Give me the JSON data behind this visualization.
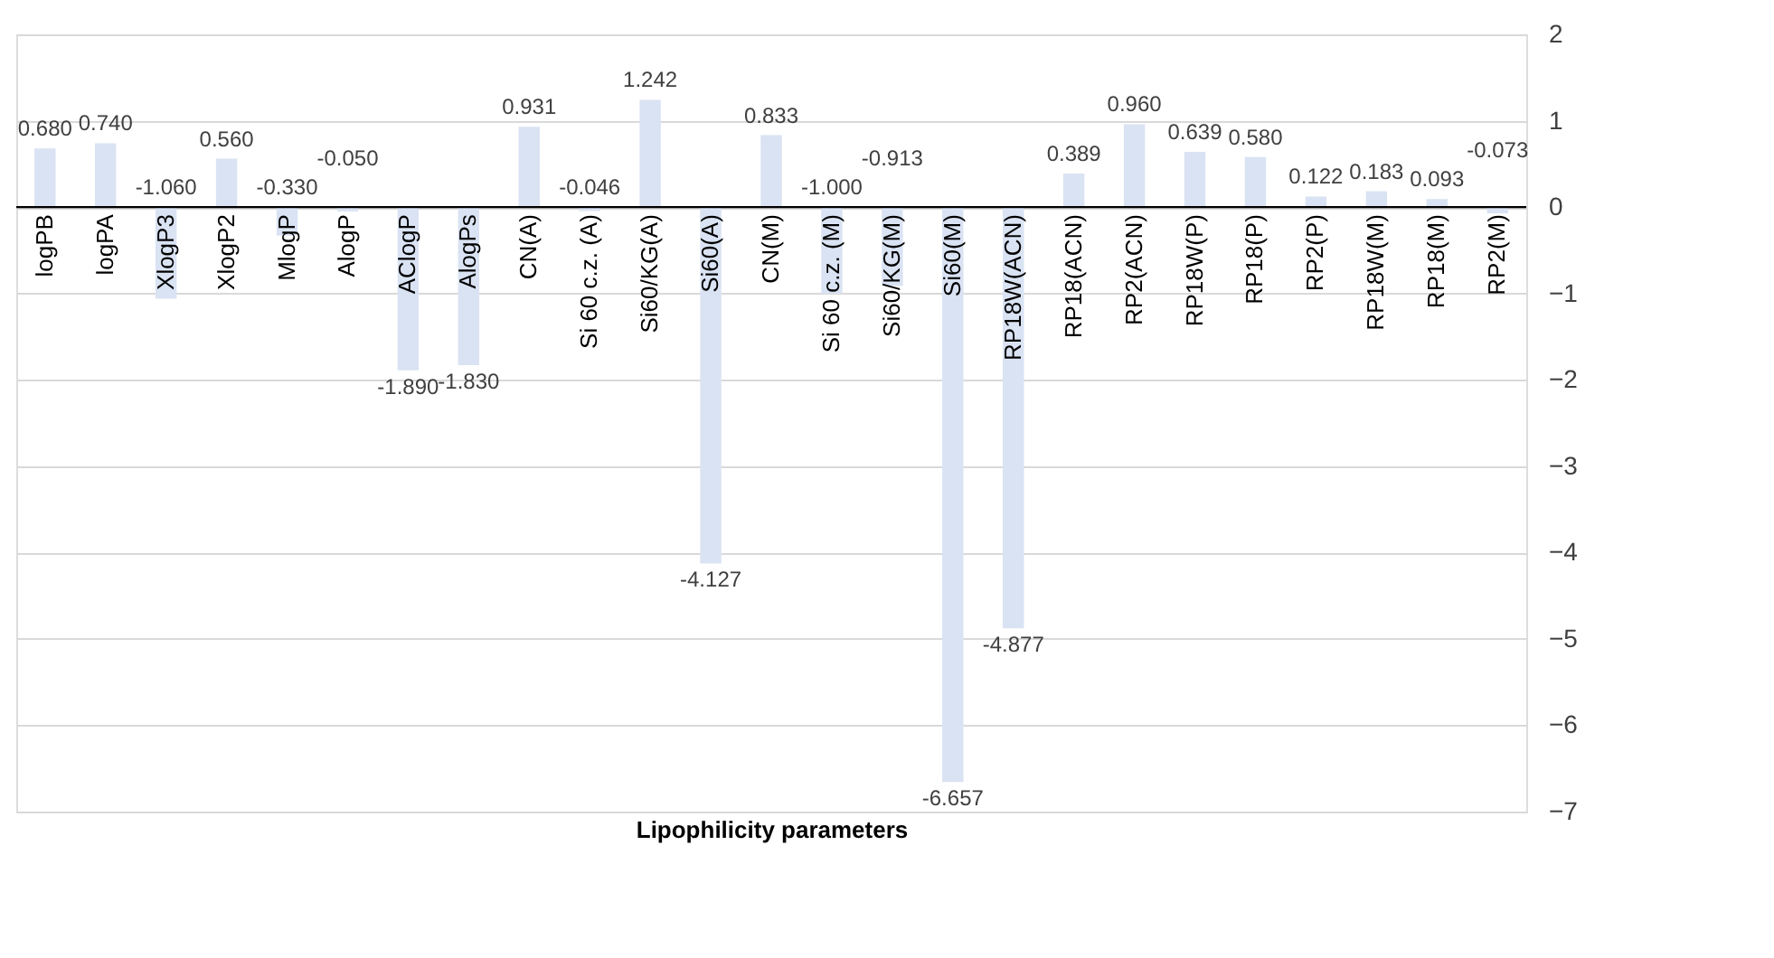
{
  "chart_data": {
    "type": "bar",
    "xlabel": "Lipophilicity parameters",
    "categories": [
      "logPB",
      "logPA",
      "XlogP3",
      "XlogP2",
      "MlogP",
      "AlogP",
      "AClogP",
      "AlogPs",
      "CN(A)",
      "Si 60 c.z. (A)",
      "Si60/KG(A)",
      "Si60(A)",
      "CN(M)",
      "Si 60 c.z. (M)",
      "Si60/KG(M)",
      "Si60(M)",
      "RP18W(ACN)",
      "RP18(ACN)",
      "RP2(ACN)",
      "RP18W(P)",
      "RP18(P)",
      "RP2(P)",
      "RP18W(M)",
      "RP18(M)",
      "RP2(M)"
    ],
    "values": [
      0.68,
      0.74,
      -1.06,
      0.56,
      -0.33,
      -0.05,
      -1.89,
      -1.83,
      0.931,
      -0.046,
      1.242,
      -4.127,
      0.833,
      -1.0,
      -0.913,
      -6.657,
      -4.877,
      0.389,
      0.96,
      0.639,
      0.58,
      0.122,
      0.183,
      0.093,
      -0.073
    ],
    "value_labels": [
      "0.680",
      "0.740",
      "-1.060",
      "0.560",
      "-0.330",
      "-0.050",
      "-1.890",
      "-1.830",
      "0.931",
      "-0.046",
      "1.242",
      "-4.127",
      "0.833",
      "-1.000",
      "-0.913",
      "-6.657",
      "-4.877",
      "0.389",
      "0.960",
      "0.639",
      "0.580",
      "0.122",
      "0.183",
      "0.093",
      "-0.073"
    ],
    "color": "#dae3f3",
    "ylim": [
      -7,
      2
    ],
    "yticks": [
      -7,
      -6,
      -5,
      -4,
      -3,
      -2,
      -1,
      0,
      1,
      2
    ],
    "grid": "y"
  }
}
